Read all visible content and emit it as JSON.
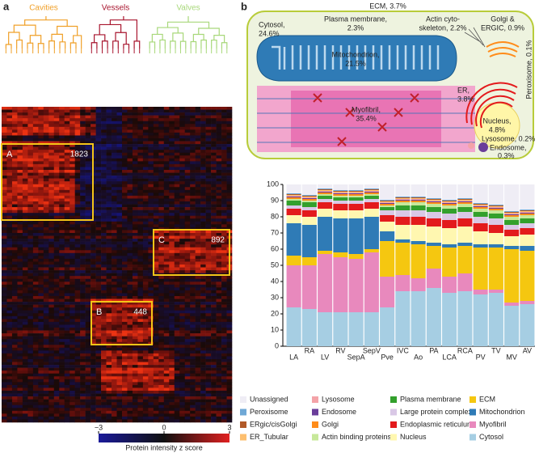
{
  "panel_a": {
    "label": "a",
    "groups": [
      {
        "name": "Cavities",
        "color": "#f0a028"
      },
      {
        "name": "Vessels",
        "color": "#a8152e"
      },
      {
        "name": "Valves",
        "color": "#a8d87a"
      }
    ],
    "clusters": [
      {
        "name": "A",
        "count": "1823"
      },
      {
        "name": "B",
        "count": "448"
      },
      {
        "name": "C",
        "count": "892"
      }
    ],
    "colorbar": {
      "ticks": [
        "−3",
        "0",
        "3"
      ],
      "title": "Protein intensity z score"
    }
  },
  "panel_b": {
    "label": "b",
    "diagram": {
      "ecm": "ECM, 3.7%",
      "cytosol": [
        "Cytosol,",
        "24.6%"
      ],
      "plasma_membrane": [
        "Plasma membrane,",
        "2.3%"
      ],
      "actin": [
        "Actin cyto-",
        "skeleton, 2.2%"
      ],
      "golgi": [
        "Golgi &",
        "ERGIC, 0.9%"
      ],
      "mitochondrion": [
        "Mitochondrion,",
        "21.5%"
      ],
      "peroxisome": "Peroxisome, 0.1%",
      "er": [
        "ER,",
        "3.8%"
      ],
      "nucleus": [
        "Nucleus,",
        "4.8%"
      ],
      "myofibril": [
        "Myofibril,",
        "35.4%"
      ],
      "lysosome": "Lysosome, 0.2%",
      "endosome": [
        "Endosome,",
        "0.3%"
      ]
    }
  },
  "chart_data": {
    "type": "stacked_bar",
    "categories": [
      "LA",
      "RA",
      "LV",
      "RV",
      "SepA",
      "SepV",
      "Pve",
      "IVC",
      "Ao",
      "PA",
      "LCA",
      "RCA",
      "PV",
      "TV",
      "MV",
      "AV"
    ],
    "ylim": [
      0,
      100
    ],
    "yticks": [
      0,
      10,
      20,
      30,
      40,
      50,
      60,
      70,
      80,
      90,
      100
    ],
    "series": [
      {
        "name": "Cytosol",
        "color": "#a6cee3",
        "values": [
          24,
          23,
          21,
          21,
          21,
          21,
          24,
          34,
          34,
          36,
          33,
          34,
          32,
          33,
          25,
          26
        ]
      },
      {
        "name": "Myofibril",
        "color": "#e889bd",
        "values": [
          26,
          27,
          36,
          34,
          33,
          37,
          19,
          10,
          8,
          12,
          10,
          11,
          3,
          2,
          2,
          2
        ]
      },
      {
        "name": "ECM",
        "color": "#f5c710",
        "values": [
          6,
          5,
          2,
          3,
          3,
          2,
          22,
          20,
          21,
          14,
          18,
          17,
          26,
          26,
          33,
          31
        ]
      },
      {
        "name": "Mitochondrion",
        "color": "#2f7bb6",
        "values": [
          20,
          20,
          21,
          21,
          22,
          20,
          6,
          2,
          2,
          2,
          2,
          2,
          2,
          2,
          2,
          3
        ]
      },
      {
        "name": "Nucleus",
        "color": "#fff7b0",
        "values": [
          5,
          5,
          5,
          5,
          5,
          5,
          6,
          9,
          10,
          10,
          10,
          10,
          8,
          7,
          6,
          7
        ]
      },
      {
        "name": "Endoplasmic reticulum",
        "color": "#e31a1c",
        "values": [
          4,
          4,
          4,
          4,
          4,
          4,
          4,
          5,
          5,
          5,
          5,
          5,
          5,
          5,
          4,
          4
        ]
      },
      {
        "name": "Large protein complex",
        "color": "#d9c8e6",
        "values": [
          2,
          2,
          2,
          2,
          2,
          2,
          3,
          4,
          4,
          4,
          4,
          4,
          4,
          4,
          3,
          3
        ]
      },
      {
        "name": "Plasma membrane",
        "color": "#33a02c",
        "values": [
          3,
          3,
          2,
          2,
          2,
          2,
          2,
          3,
          3,
          3,
          3,
          3,
          3,
          3,
          3,
          3
        ]
      },
      {
        "name": "Actin binding proteins",
        "color": "#c7e89a",
        "values": [
          1,
          1,
          1,
          1,
          1,
          1,
          1,
          2,
          2,
          2,
          2,
          2,
          2,
          2,
          2,
          2
        ]
      },
      {
        "name": "Golgi",
        "color": "#ff8c1a",
        "values": [
          1,
          1,
          1,
          1,
          1,
          1,
          1,
          1,
          1,
          1,
          1,
          1,
          1,
          1,
          1,
          1
        ]
      },
      {
        "name": "Endosome",
        "color": "#6a3d9a",
        "values": [
          0.5,
          0.5,
          0.5,
          0.5,
          0.5,
          0.5,
          0.5,
          0.5,
          0.5,
          0.5,
          0.5,
          0.5,
          0.5,
          0.5,
          0.5,
          0.5
        ]
      },
      {
        "name": "Lysosome",
        "color": "#f4a3a8",
        "values": [
          0.5,
          0.5,
          0.5,
          0.5,
          0.5,
          0.5,
          0.5,
          0.5,
          0.5,
          0.5,
          0.5,
          0.5,
          0.5,
          0.5,
          0.5,
          0.5
        ]
      },
      {
        "name": "ER_Tubular",
        "color": "#fdbf6f",
        "values": [
          0.5,
          0.5,
          0.5,
          0.5,
          0.5,
          0.5,
          0.5,
          0.5,
          0.5,
          0.5,
          0.5,
          0.5,
          0.5,
          0.5,
          0.5,
          0.5
        ]
      },
      {
        "name": "ERgic/cisGolgi",
        "color": "#b15928",
        "values": [
          0.5,
          0.5,
          0.5,
          0.5,
          0.5,
          0.5,
          0.5,
          0.5,
          0.5,
          0.5,
          0.5,
          0.5,
          0.5,
          0.5,
          0.5,
          0.5
        ]
      },
      {
        "name": "Peroxisome",
        "color": "#6fa8d6",
        "values": [
          0.5,
          0.5,
          0.5,
          0.5,
          0.5,
          0.5,
          0.5,
          0.5,
          0.5,
          0.5,
          0.5,
          0.5,
          0.5,
          0.5,
          0.5,
          0.5
        ]
      },
      {
        "name": "Unassigned",
        "color": "#efedf5",
        "values": [
          5.5,
          6.5,
          2.5,
          3.5,
          3.5,
          2.5,
          9.5,
          7.5,
          7.5,
          8.5,
          9.5,
          8.5,
          11.5,
          12.5,
          16.5,
          15.5
        ]
      }
    ]
  }
}
